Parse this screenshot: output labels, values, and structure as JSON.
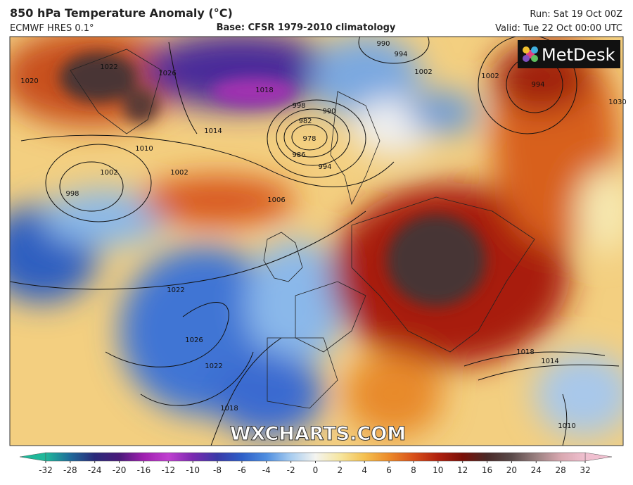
{
  "header": {
    "title": "850 hPa Temperature Anomaly (°C)",
    "model": "ECMWF HRES 0.1°",
    "base": "Base: CFSR 1979-2010 climatology",
    "run": "Run: Sat 19 Oct 00Z",
    "valid": "Valid: Tue 22 Oct 00:00 UTC"
  },
  "logo": "MetDesk",
  "watermark": "WXCHARTS.COM",
  "isobar_labels": [
    1026,
    1020,
    1022,
    1018,
    1014,
    1010,
    1002,
    998,
    1002,
    1006,
    998,
    990,
    982,
    978,
    986,
    994,
    990,
    994,
    1002,
    1002,
    994,
    1022,
    1026,
    1022,
    1018,
    1018,
    1014,
    1030,
    1010
  ],
  "colorbar": {
    "ticks": [
      -32,
      -28,
      -24,
      -20,
      -16,
      -12,
      -10,
      -8,
      -6,
      -4,
      -2,
      0,
      2,
      4,
      6,
      8,
      10,
      12,
      16,
      20,
      24,
      28,
      32
    ],
    "colors": [
      "#1fb89a",
      "#1f6a9a",
      "#2a2a7a",
      "#4a1a7a",
      "#a020b0",
      "#c040d0",
      "#7a2ab0",
      "#3a3aa8",
      "#2e5fc8",
      "#4f8ee0",
      "#a8cdf0",
      "#f4f4f0",
      "#f6e6a0",
      "#f4c050",
      "#ec8a2a",
      "#d8501a",
      "#b0200e",
      "#7a1008",
      "#4a2a28",
      "#5a4a4a",
      "#9a8080",
      "#d8a8b0",
      "#f0c0d0"
    ]
  }
}
